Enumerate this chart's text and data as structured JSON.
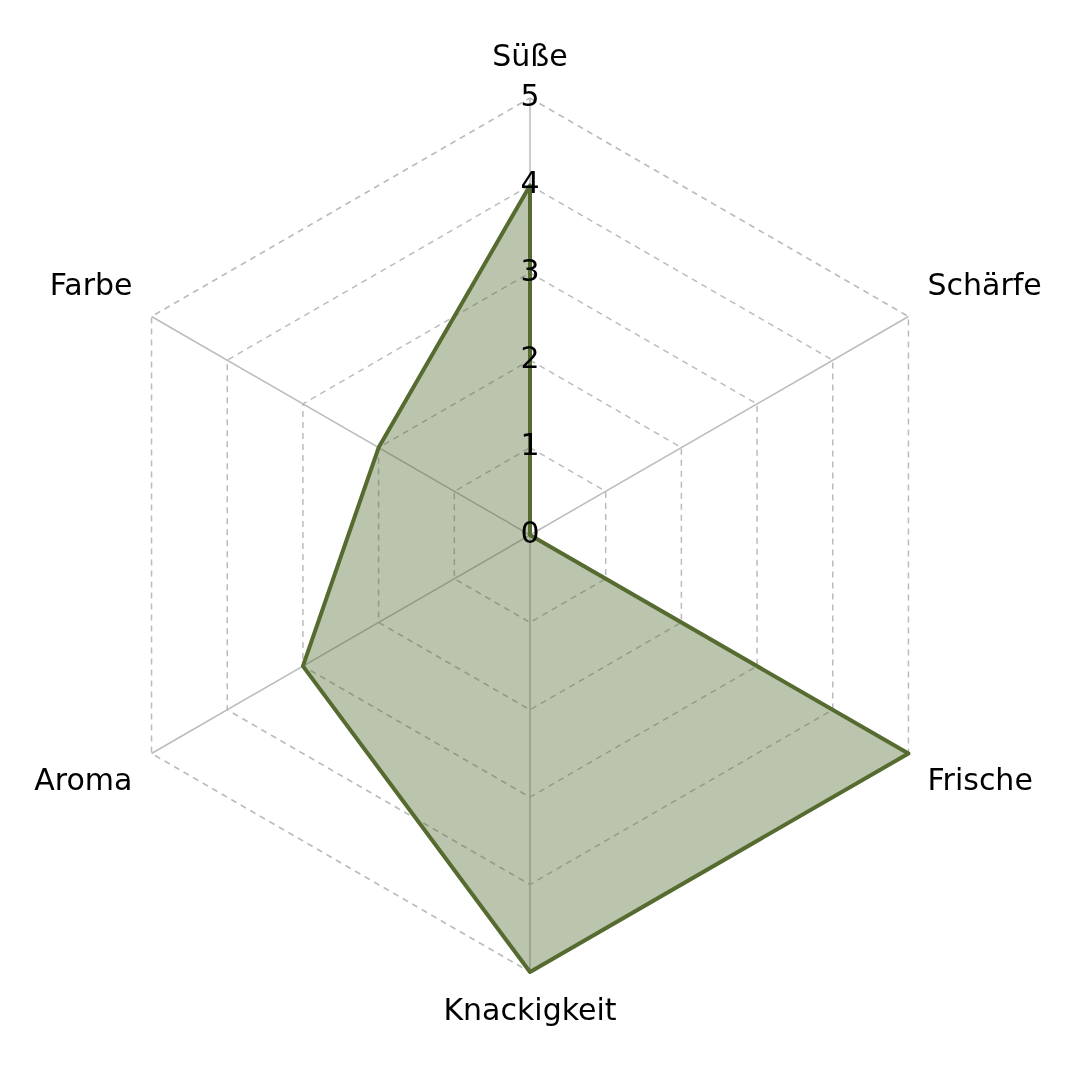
{
  "chart_data": {
    "type": "radar",
    "categories": [
      "Süße",
      "Schärfe",
      "Frische",
      "Knackigkeit",
      "Aroma",
      "Farbe"
    ],
    "series": [
      {
        "color": "#556b2f",
        "values": [
          4,
          0,
          5,
          5,
          3,
          2
        ]
      }
    ],
    "ylim": [
      0,
      5
    ],
    "yticks": [
      0,
      1,
      2,
      3,
      4,
      5
    ],
    "grid": true,
    "marker": "none"
  }
}
